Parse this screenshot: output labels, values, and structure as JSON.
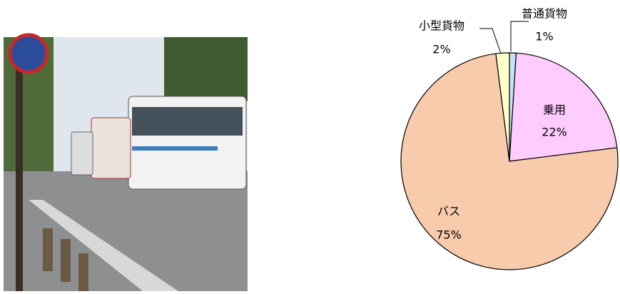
{
  "chart_data": {
    "type": "pie",
    "categories": [
      "普通貨物",
      "乗用",
      "バス",
      "小型貨物"
    ],
    "values": [
      1,
      22,
      75,
      2
    ],
    "value_labels": [
      "1%",
      "22%",
      "75%",
      "2%"
    ],
    "colors": [
      "#c5e3f6",
      "#ffccff",
      "#f8cbad",
      "#ffffcc"
    ]
  }
}
